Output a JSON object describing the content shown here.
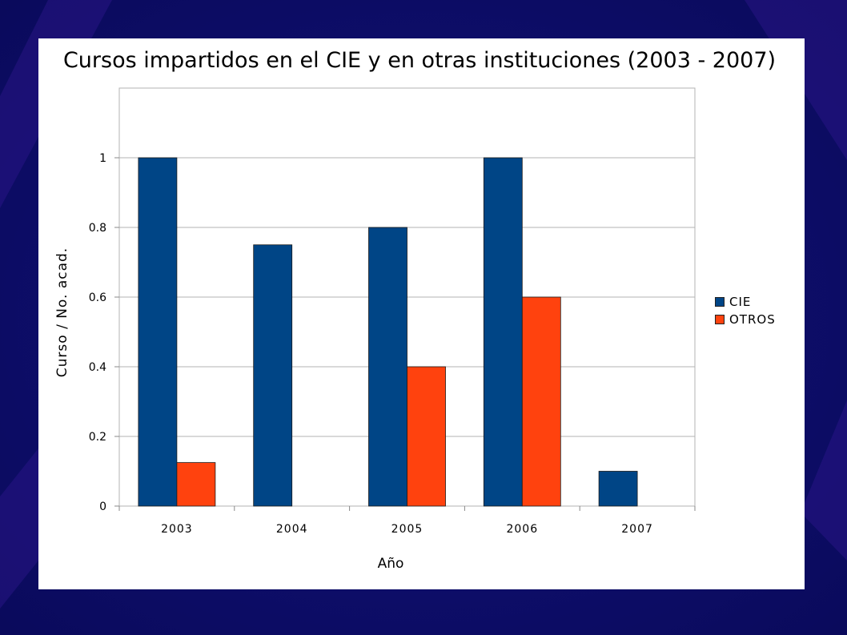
{
  "colors": {
    "background": "#0b0b6b",
    "panel": "#ffffff",
    "cie": "#004586",
    "otros": "#ff420e",
    "grid": "#b3b3b3"
  },
  "chart_data": {
    "type": "bar",
    "title": "Cursos impartidos en el CIE y en otras instituciones (2003 - 2007)",
    "xlabel": "Año",
    "ylabel": "Curso / No. acad.",
    "categories": [
      "2003",
      "2004",
      "2005",
      "2006",
      "2007"
    ],
    "series": [
      {
        "name": "CIE",
        "values": [
          1,
          0.75,
          0.8,
          1,
          0.1
        ]
      },
      {
        "name": "OTROS",
        "values": [
          0.125,
          0,
          0.4,
          0.6,
          0
        ]
      }
    ],
    "ylim": [
      0,
      1.2
    ],
    "yticks": [
      0,
      0.2,
      0.4,
      0.6,
      0.8,
      1
    ],
    "ytick_labels": [
      "0",
      "0.2",
      "0.4",
      "0.6",
      "0.8",
      "1"
    ],
    "grid": true,
    "legend_position": "right"
  }
}
